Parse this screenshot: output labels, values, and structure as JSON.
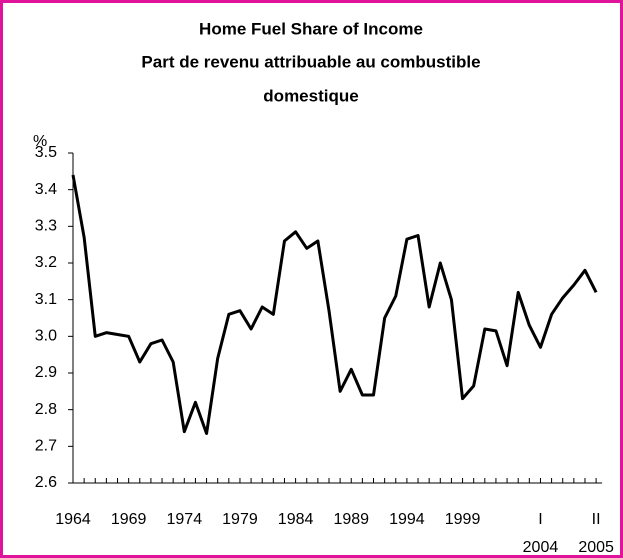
{
  "chart_data": {
    "type": "line",
    "title": [
      "Home Fuel Share of Income",
      "Part de revenu attribuable au combustible",
      "domestique"
    ],
    "y_label": "%",
    "categories": [
      "1964",
      null,
      null,
      null,
      null,
      "1969",
      null,
      null,
      null,
      null,
      "1974",
      null,
      null,
      null,
      null,
      "1979",
      null,
      null,
      null,
      null,
      "1984",
      null,
      null,
      null,
      null,
      "1989",
      null,
      null,
      null,
      null,
      "1994",
      null,
      null,
      null,
      null,
      "1999",
      null,
      null,
      null,
      null,
      null,
      null,
      "I",
      null,
      null,
      null,
      null,
      "II"
    ],
    "category_sublabels": [
      null,
      null,
      null,
      null,
      null,
      null,
      null,
      null,
      null,
      null,
      null,
      null,
      null,
      null,
      null,
      null,
      null,
      null,
      null,
      null,
      null,
      null,
      null,
      null,
      null,
      null,
      null,
      null,
      null,
      null,
      null,
      null,
      null,
      null,
      null,
      null,
      null,
      null,
      null,
      null,
      null,
      null,
      "2004",
      null,
      null,
      null,
      null,
      "2005"
    ],
    "series": [
      {
        "color": "#000000",
        "values": [
          3.44,
          3.27,
          3.0,
          3.01,
          3.005,
          3.0,
          2.93,
          2.98,
          2.99,
          2.93,
          2.74,
          2.82,
          2.735,
          2.94,
          3.06,
          3.07,
          3.02,
          3.08,
          3.06,
          3.26,
          3.285,
          3.24,
          3.26,
          3.07,
          2.85,
          2.91,
          2.84,
          2.84,
          3.05,
          3.11,
          3.265,
          3.275,
          3.08,
          3.2,
          3.1,
          2.83,
          2.865,
          3.02,
          3.015,
          2.92,
          3.12,
          3.03,
          2.97,
          3.06,
          3.105,
          3.14,
          3.18,
          3.12
        ]
      }
    ],
    "ylim": [
      2.6,
      3.5
    ],
    "yticks": [
      {
        "value": 2.6,
        "label": "2.6"
      },
      {
        "value": 2.7,
        "label": "2.7"
      },
      {
        "value": 2.8,
        "label": "2.8"
      },
      {
        "value": 2.9,
        "label": "2.9"
      },
      {
        "value": 3.0,
        "label": "3.0"
      },
      {
        "value": 3.1,
        "label": "3.1"
      },
      {
        "value": 3.2,
        "label": "3.2"
      },
      {
        "value": 3.3,
        "label": "3.3"
      },
      {
        "value": 3.4,
        "label": "3.4"
      },
      {
        "value": 3.5,
        "label": "3.5"
      }
    ],
    "border_color": "#e0149a"
  }
}
